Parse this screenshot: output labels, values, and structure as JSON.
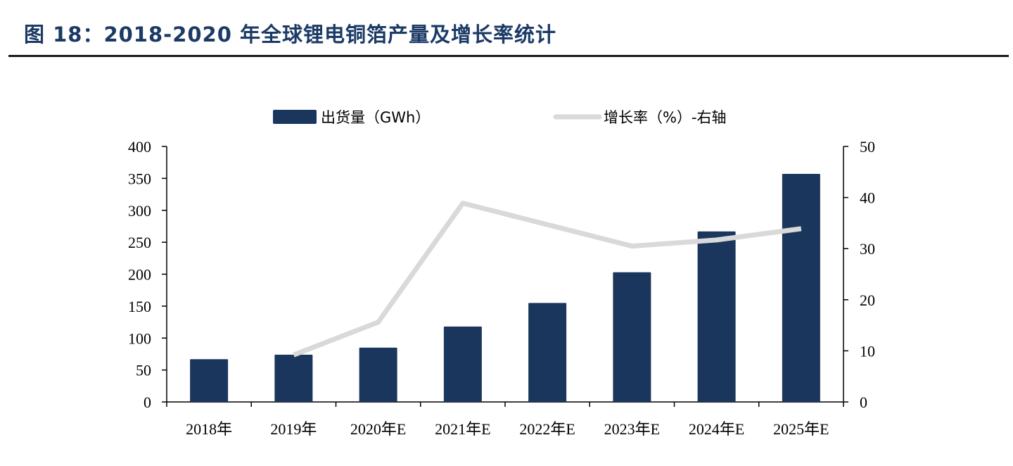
{
  "figure": {
    "title": "图 18：2018-2020 年全球锂电铜箔产量及增长率统计"
  },
  "chart_data": {
    "type": "bar+line",
    "categories": [
      "2018年",
      "2019年",
      "2020年E",
      "2021年E",
      "2022年E",
      "2023年E",
      "2024年E",
      "2025年E"
    ],
    "series": [
      {
        "name": "出货量（GWh）",
        "type": "bar",
        "axis": "left",
        "color": "#1b365d",
        "values": [
          67,
          74,
          85,
          118,
          155,
          203,
          267,
          357
        ]
      },
      {
        "name": "增长率（%）-右轴",
        "type": "line",
        "axis": "right",
        "color": "#d9d9d9",
        "values": [
          null,
          9.2,
          15.6,
          38.9,
          null,
          30.5,
          31.7,
          33.9
        ]
      }
    ],
    "y_left": {
      "min": 0,
      "max": 400,
      "ticks": [
        0,
        50,
        100,
        150,
        200,
        250,
        300,
        350,
        400
      ]
    },
    "y_right": {
      "min": 0,
      "max": 50,
      "ticks": [
        0,
        10,
        20,
        30,
        40,
        50
      ]
    },
    "legend": {
      "position": "top"
    },
    "grid": false
  }
}
